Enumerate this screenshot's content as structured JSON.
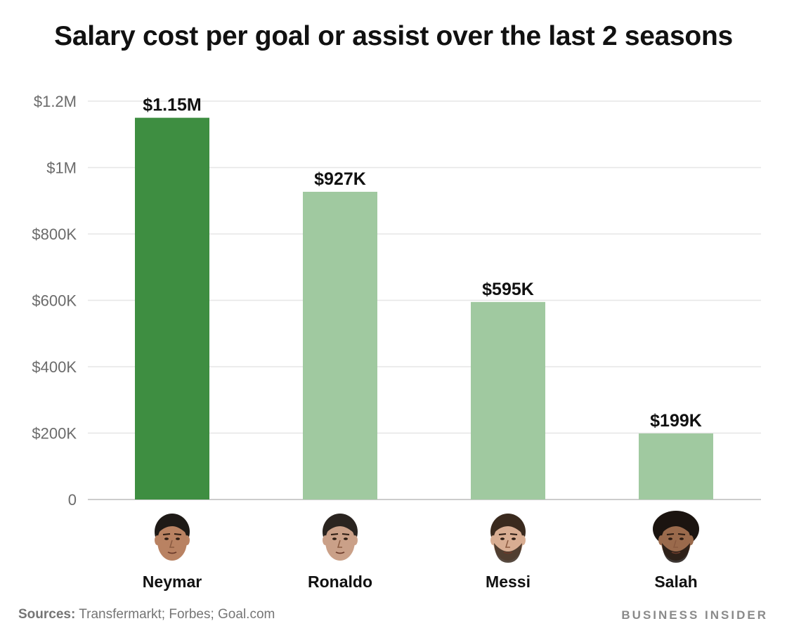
{
  "chart_data": {
    "type": "bar",
    "title": "Salary cost per goal or assist over the last 2 seasons",
    "categories": [
      "Neymar",
      "Ronaldo",
      "Messi",
      "Salah"
    ],
    "values": [
      1150000,
      927000,
      595000,
      199000
    ],
    "value_labels": [
      "$1.15M",
      "$927K",
      "$595K",
      "$199K"
    ],
    "ylim": [
      0,
      1200000
    ],
    "yticks": [
      0,
      200000,
      400000,
      600000,
      800000,
      1000000,
      1200000
    ],
    "ytick_labels": [
      "0",
      "$200K",
      "$400K",
      "$600K",
      "$800K",
      "$1M",
      "$1.2M"
    ],
    "grid": true,
    "legend": "none",
    "category_icons": [
      "neymar-face-icon",
      "ronaldo-face-icon",
      "messi-face-icon",
      "salah-face-icon"
    ],
    "colors": {
      "highlight": "#3e8e41",
      "default": "#a0c9a0",
      "grid": "#e6e6e6",
      "axis": "#cccccc"
    }
  },
  "footer": {
    "source_label": "Sources:",
    "source_text": " Transfermarkt; Forbes; Goal.com",
    "brand": "BUSINESS INSIDER"
  }
}
